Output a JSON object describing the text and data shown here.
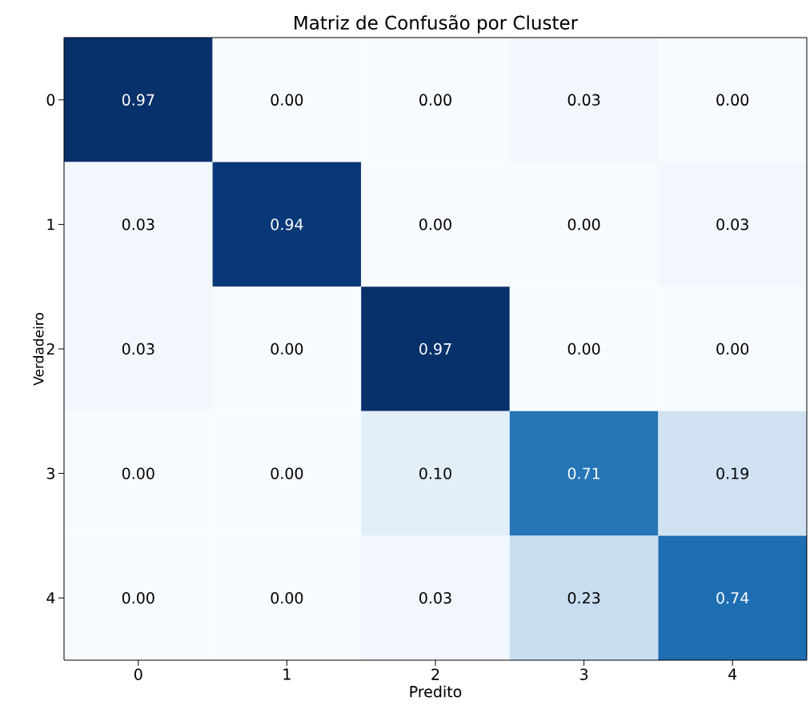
{
  "chart_data": {
    "type": "heatmap",
    "title": "Matriz de Confusão por Cluster",
    "xlabel": "Predito",
    "ylabel": "Verdadeiro",
    "categories": [
      "0",
      "1",
      "2",
      "3",
      "4"
    ],
    "y_categories": [
      "0",
      "1",
      "2",
      "3",
      "4"
    ],
    "cells": [
      [
        0.97,
        0.0,
        0.0,
        0.03,
        0.0
      ],
      [
        0.03,
        0.94,
        0.0,
        0.0,
        0.03
      ],
      [
        0.03,
        0.0,
        0.97,
        0.0,
        0.0
      ],
      [
        0.0,
        0.0,
        0.1,
        0.71,
        0.19
      ],
      [
        0.0,
        0.0,
        0.03,
        0.23,
        0.74
      ]
    ],
    "cell_labels": [
      [
        "0.97",
        "0.00",
        "0.00",
        "0.03",
        "0.00"
      ],
      [
        "0.03",
        "0.94",
        "0.00",
        "0.00",
        "0.03"
      ],
      [
        "0.03",
        "0.00",
        "0.97",
        "0.00",
        "0.00"
      ],
      [
        "0.00",
        "0.00",
        "0.10",
        "0.71",
        "0.19"
      ],
      [
        "0.00",
        "0.00",
        "0.03",
        "0.23",
        "0.74"
      ]
    ]
  }
}
